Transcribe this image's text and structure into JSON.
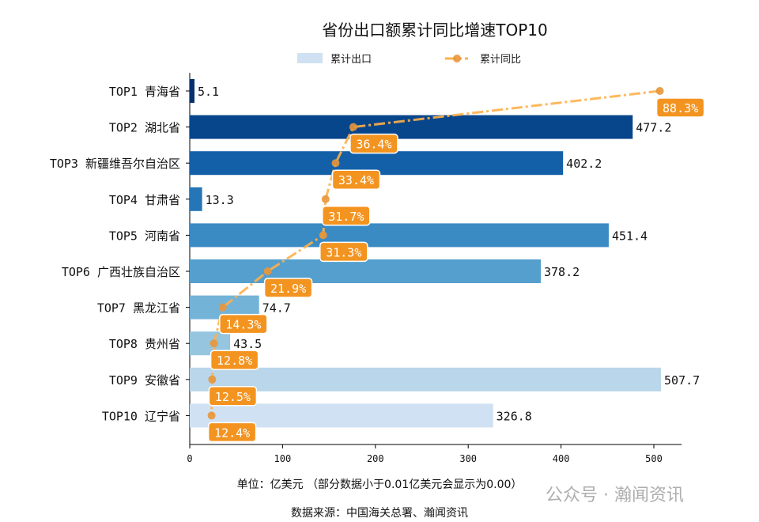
{
  "chart_data": {
    "type": "bar",
    "orientation": "horizontal",
    "title": "省份出口额累计同比增速TOP10",
    "categories": [
      "TOP1 青海省",
      "TOP2 湖北省",
      "TOP3 新疆维吾尔自治区",
      "TOP4 甘肃省",
      "TOP5 河南省",
      "TOP6 广西壮族自治区",
      "TOP7 黑龙江省",
      "TOP8 贵州省",
      "TOP9 安徽省",
      "TOP10 辽宁省"
    ],
    "series": [
      {
        "name": "累计出口",
        "type": "bar",
        "values": [
          5.1,
          477.2,
          402.2,
          13.3,
          451.4,
          378.2,
          74.7,
          43.5,
          507.7,
          326.8
        ]
      },
      {
        "name": "累计同比",
        "type": "line",
        "unit": "%",
        "values": [
          88.3,
          36.4,
          33.4,
          31.7,
          31.3,
          21.9,
          14.3,
          12.8,
          12.5,
          12.4
        ]
      }
    ],
    "bar_colors": [
      "#08306b",
      "#08468c",
      "#1460a8",
      "#2575b7",
      "#3a8bc4",
      "#549fcd",
      "#73b3d8",
      "#95c5df",
      "#b9d6ea",
      "#cfe1f2"
    ],
    "line_color": "#ffb04a",
    "label_box_color": "#f39420",
    "xticks": [
      0,
      100,
      200,
      300,
      400,
      500
    ],
    "xlim": [
      0,
      530
    ],
    "legend_position": "top-center",
    "grid": false,
    "xlabel": "单位：亿美元  （部分数据小于0.01亿美元会显示为0.00）",
    "source": "数据来源：中国海关总署、瀚闻资讯"
  },
  "watermark": "公众号 · 瀚闻资讯"
}
